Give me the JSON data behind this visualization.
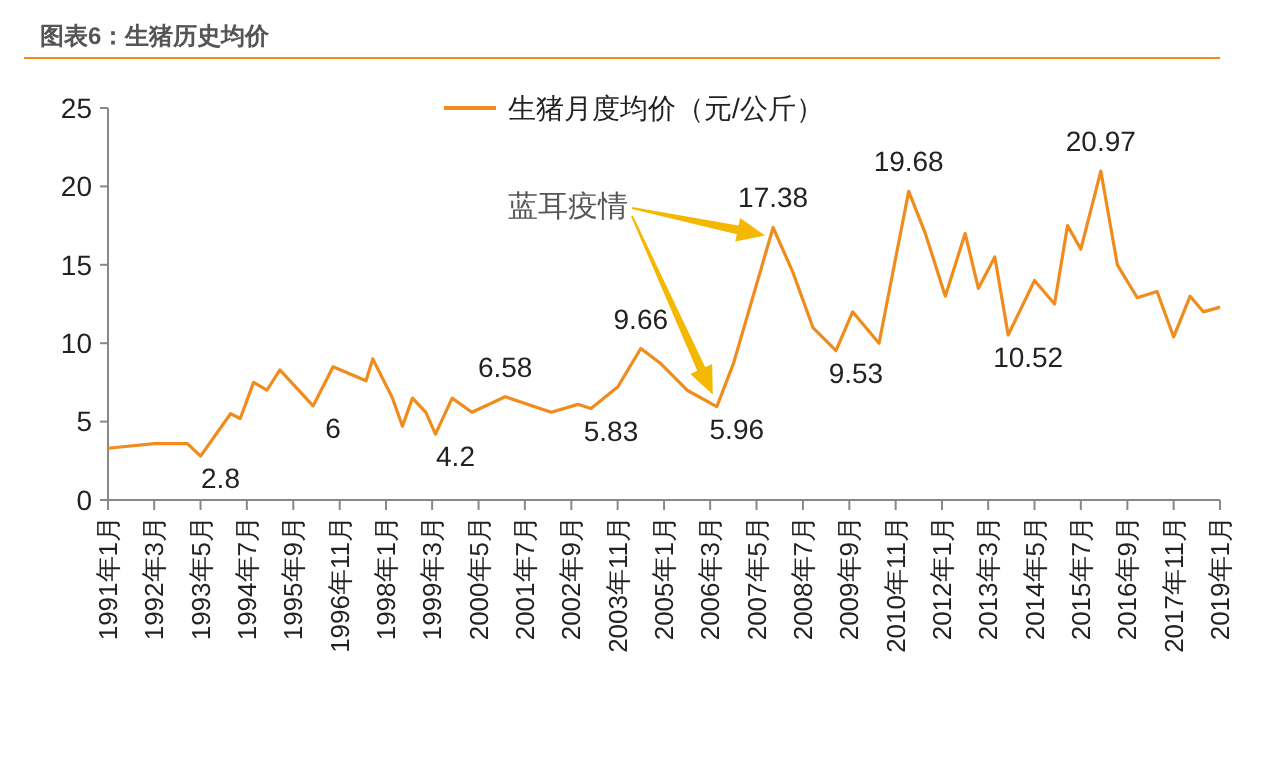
{
  "chart_data": {
    "type": "line",
    "title": "图表6：生猪历史均价",
    "legend": "top",
    "xlim": [
      "1991-01",
      "2019-01"
    ],
    "xticks": [
      {
        "value": "1991-01",
        "label": "1991年1月"
      },
      {
        "value": "1992-03",
        "label": "1992年3月"
      },
      {
        "value": "1993-05",
        "label": "1993年5月"
      },
      {
        "value": "1994-07",
        "label": "1994年7月"
      },
      {
        "value": "1995-09",
        "label": "1995年9月"
      },
      {
        "value": "1996-11",
        "label": "1996年11月"
      },
      {
        "value": "1998-01",
        "label": "1998年1月"
      },
      {
        "value": "1999-03",
        "label": "1999年3月"
      },
      {
        "value": "2000-05",
        "label": "2000年5月"
      },
      {
        "value": "2001-07",
        "label": "2001年7月"
      },
      {
        "value": "2002-09",
        "label": "2002年9月"
      },
      {
        "value": "2003-11",
        "label": "2003年11月"
      },
      {
        "value": "2005-01",
        "label": "2005年1月"
      },
      {
        "value": "2006-03",
        "label": "2006年3月"
      },
      {
        "value": "2007-05",
        "label": "2007年5月"
      },
      {
        "value": "2008-07",
        "label": "2008年7月"
      },
      {
        "value": "2009-09",
        "label": "2009年9月"
      },
      {
        "value": "2010-11",
        "label": "2010年11月"
      },
      {
        "value": "2012-01",
        "label": "2012年1月"
      },
      {
        "value": "2013-03",
        "label": "2013年3月"
      },
      {
        "value": "2014-05",
        "label": "2014年5月"
      },
      {
        "value": "2015-07",
        "label": "2015年7月"
      },
      {
        "value": "2016-09",
        "label": "2016年9月"
      },
      {
        "value": "2017-11",
        "label": "2017年11月"
      },
      {
        "value": "2019-01",
        "label": "2019年1月"
      }
    ],
    "ylim": [
      0,
      25
    ],
    "yticks": [
      0,
      5,
      10,
      15,
      20,
      25
    ],
    "series": [
      {
        "name": "生猪月度均价（元/公斤）",
        "color": "#f08c1e",
        "x": [
          "1991-01",
          "1992-03",
          "1993-01",
          "1993-05",
          "1993-09",
          "1994-02",
          "1994-05",
          "1994-09",
          "1995-01",
          "1995-05",
          "1996-03",
          "1996-09",
          "1997-07",
          "1997-09",
          "1998-03",
          "1998-06",
          "1998-09",
          "1999-01",
          "1999-04",
          "1999-09",
          "2000-03",
          "2001-01",
          "2002-03",
          "2002-11",
          "2003-03",
          "2003-11",
          "2004-06",
          "2004-12",
          "2005-08",
          "2006-05",
          "2006-10",
          "2007-10",
          "2008-04",
          "2008-10",
          "2009-05",
          "2009-10",
          "2010-06",
          "2011-03",
          "2011-08",
          "2012-02",
          "2012-08",
          "2012-12",
          "2013-05",
          "2013-09",
          "2014-05",
          "2014-11",
          "2015-03",
          "2015-07",
          "2016-01",
          "2016-06",
          "2016-12",
          "2017-06",
          "2017-11",
          "2018-04",
          "2018-08",
          "2019-01"
        ],
        "values": [
          3.3,
          3.6,
          3.6,
          2.8,
          4.0,
          5.5,
          5.2,
          7.5,
          7.0,
          8.3,
          6,
          8.5,
          7.6,
          9.0,
          6.5,
          4.7,
          6.5,
          5.6,
          4.2,
          6.5,
          5.6,
          6.58,
          5.6,
          6.1,
          5.83,
          7.2,
          9.66,
          8.7,
          7.0,
          5.96,
          8.7,
          17.38,
          14.5,
          11.0,
          9.53,
          12.0,
          10.0,
          19.68,
          17.0,
          13.0,
          17.0,
          13.5,
          15.5,
          10.52,
          14.0,
          12.5,
          17.5,
          16.0,
          20.97,
          15.0,
          12.9,
          13.3,
          10.4,
          13.0,
          12.0,
          12.3
        ]
      }
    ],
    "annotations": [
      "蓝耳疫情",
      {
        "text": "2.8",
        "x": "1993-05",
        "y": 2.8
      },
      {
        "text": "6",
        "x": "1996-03",
        "y": 6
      },
      {
        "text": "4.2",
        "x": "1999-04",
        "y": 4.2
      },
      {
        "text": "6.58",
        "x": "2001-01",
        "y": 6.58
      },
      {
        "text": "5.83",
        "x": "2003-03",
        "y": 5.83
      },
      {
        "text": "9.66",
        "x": "2004-06",
        "y": 9.66
      },
      {
        "text": "5.96",
        "x": "2006-05",
        "y": 5.96
      },
      {
        "text": "17.38",
        "x": "2007-10",
        "y": 17.38
      },
      {
        "text": "9.53",
        "x": "2009-05",
        "y": 9.53
      },
      {
        "text": "19.68",
        "x": "2011-03",
        "y": 19.68
      },
      {
        "text": "10.52",
        "x": "2013-09",
        "y": 10.52
      },
      {
        "text": "20.97",
        "x": "2016-01",
        "y": 20.97
      }
    ]
  }
}
